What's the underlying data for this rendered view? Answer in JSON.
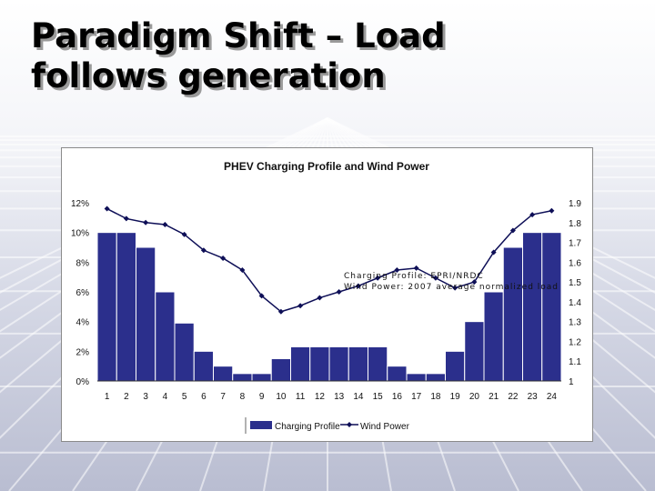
{
  "slide": {
    "title_line1": "Paradigm Shift – Load",
    "title_line2": "follows generation"
  },
  "source_note": {
    "line1": "Charging Profile: EPRI/NRDC",
    "line2": "Wind Power: 2007 average normalized load"
  },
  "colors": {
    "bar_fill": "#2b2f8c",
    "line_color": "#0e0f57",
    "title_text": "#000000"
  },
  "chart_data": {
    "type": "bar",
    "title": "PHEV Charging Profile and Wind Power",
    "categories": [
      "1",
      "2",
      "3",
      "4",
      "5",
      "6",
      "7",
      "8",
      "9",
      "10",
      "11",
      "12",
      "13",
      "14",
      "15",
      "16",
      "17",
      "18",
      "19",
      "20",
      "21",
      "22",
      "23",
      "24"
    ],
    "series": [
      {
        "name": "Charging Profile",
        "type": "bar",
        "axis": "left",
        "values": [
          10,
          10,
          9,
          6,
          3.9,
          2,
          1,
          0.5,
          0.5,
          1.5,
          2.3,
          2.3,
          2.3,
          2.3,
          2.3,
          1,
          0.5,
          0.5,
          2,
          4,
          6,
          9,
          10,
          10
        ]
      },
      {
        "name": "Wind Power",
        "type": "line",
        "axis": "right",
        "values": [
          1.87,
          1.82,
          1.8,
          1.79,
          1.74,
          1.66,
          1.62,
          1.56,
          1.43,
          1.35,
          1.38,
          1.42,
          1.45,
          1.48,
          1.52,
          1.56,
          1.57,
          1.52,
          1.47,
          1.5,
          1.65,
          1.76,
          1.84,
          1.86
        ]
      }
    ],
    "y_left": {
      "ylim": [
        0,
        12
      ],
      "ticks": [
        "0%",
        "2%",
        "4%",
        "6%",
        "8%",
        "10%",
        "12%"
      ]
    },
    "y_right": {
      "ylim": [
        1,
        1.9
      ],
      "ticks": [
        "1",
        "1.1",
        "1.2",
        "1.3",
        "1.4",
        "1.5",
        "1.6",
        "1.7",
        "1.8",
        "1.9"
      ]
    },
    "grid": false,
    "legend_position": "bottom"
  }
}
